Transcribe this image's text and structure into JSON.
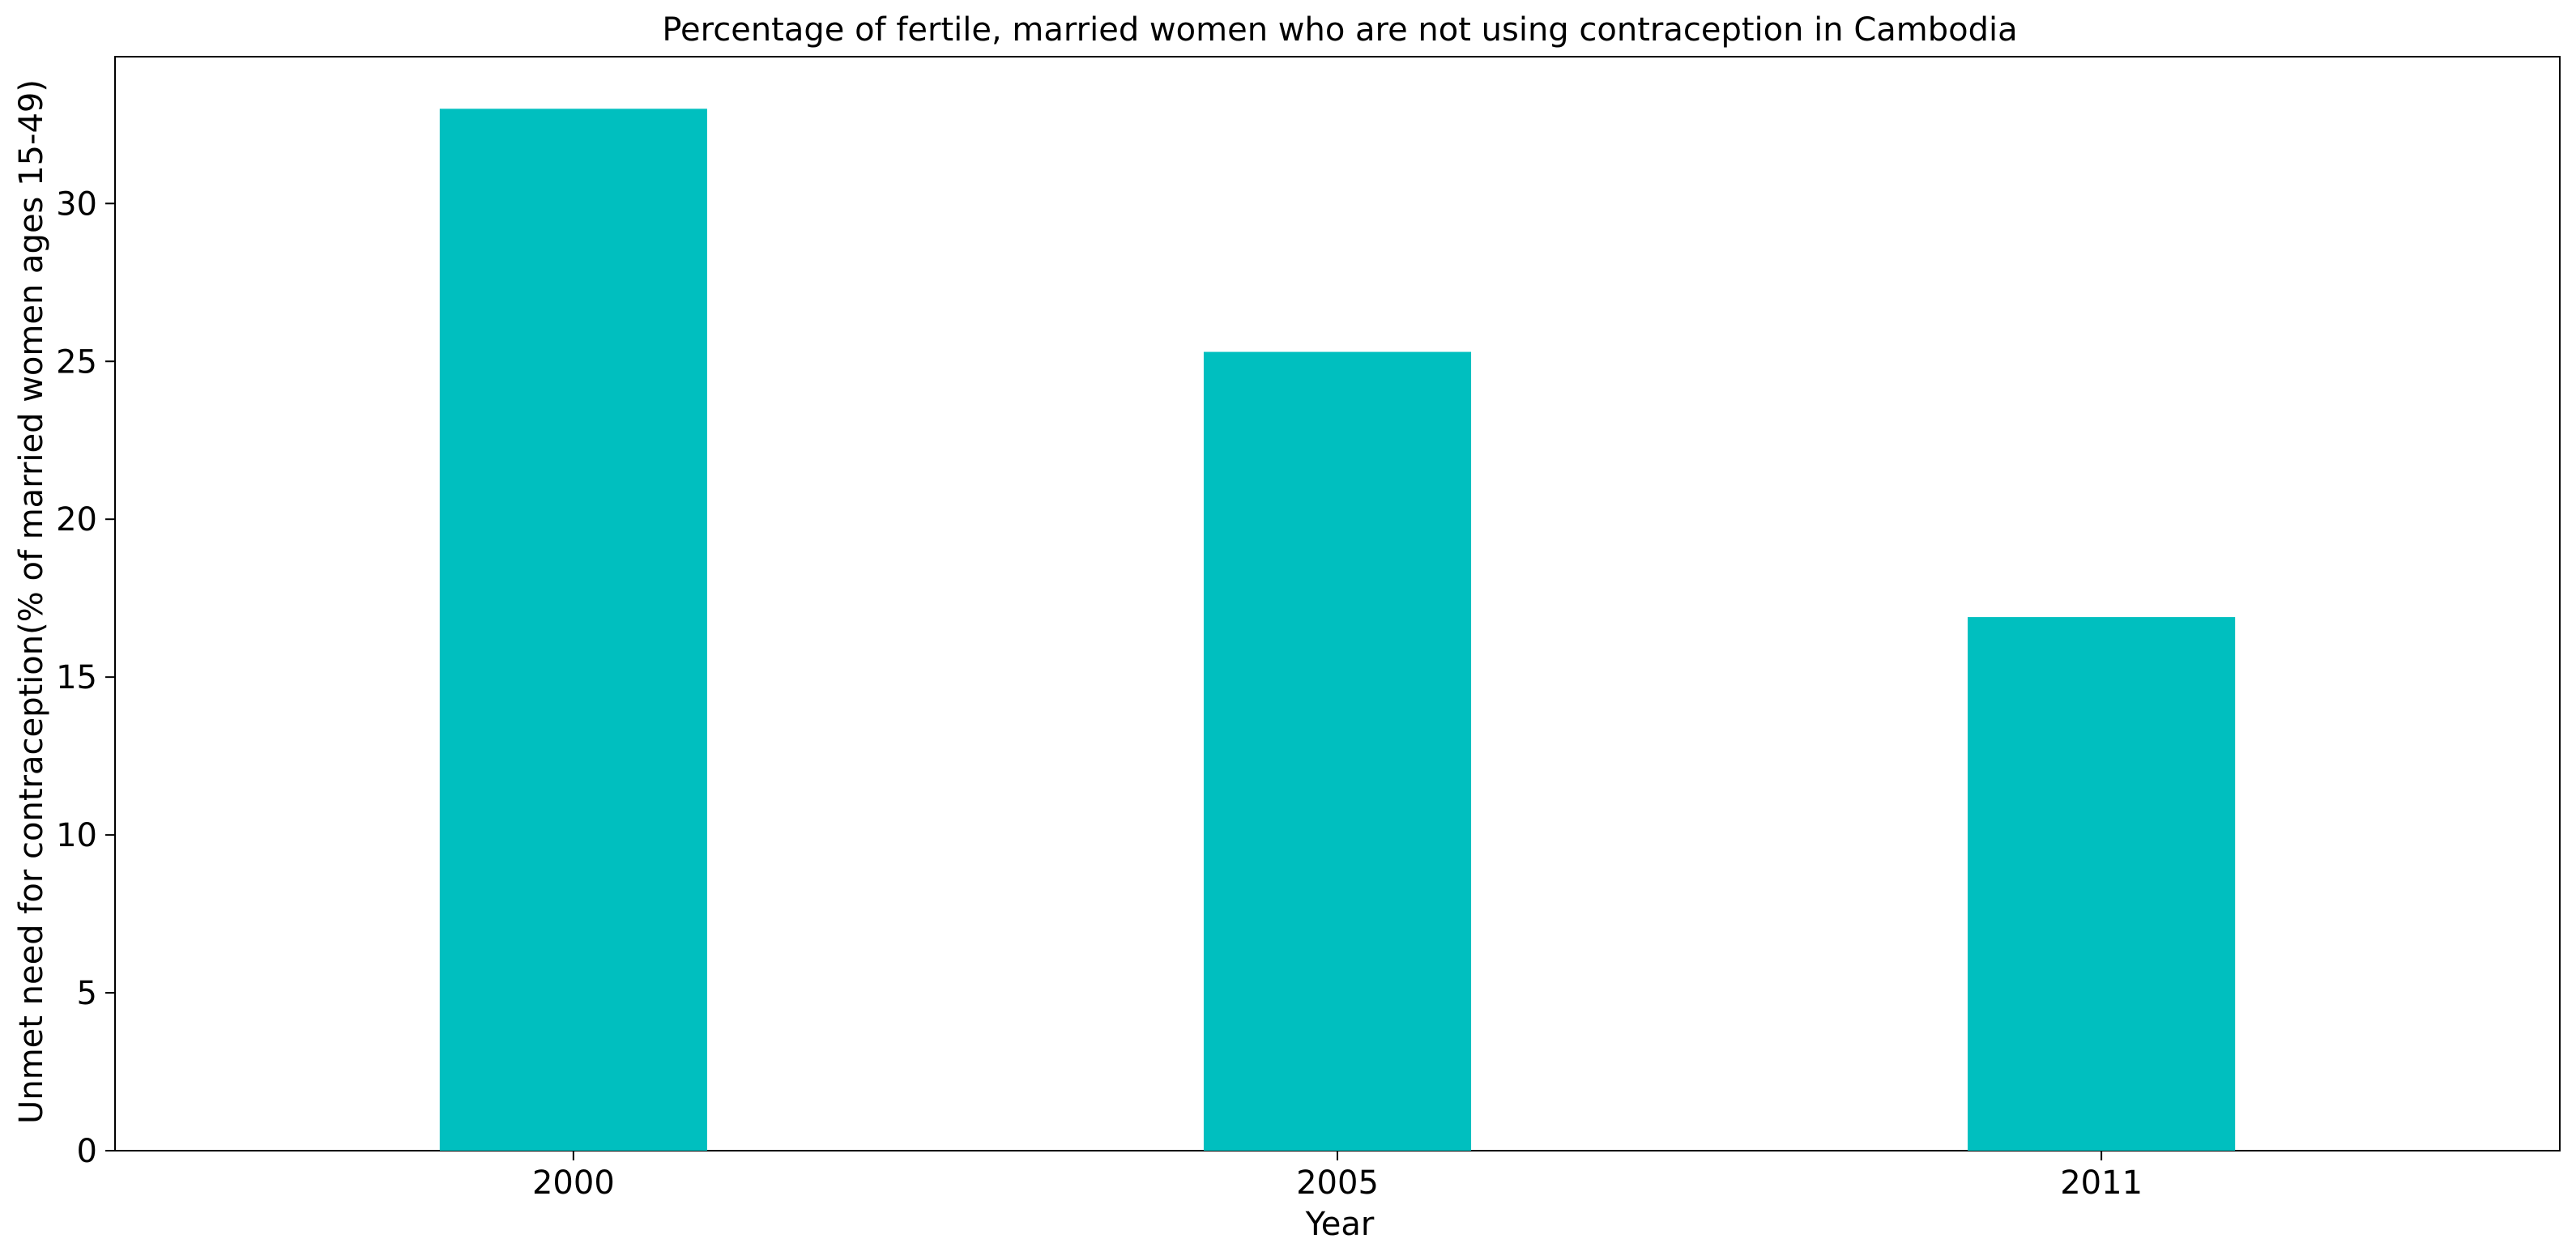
{
  "colors": {
    "bar": "#00bfbf",
    "axis": "#000000",
    "background": "#ffffff"
  },
  "chart_data": {
    "type": "bar",
    "title": "Percentage of fertile, married women who are not using contraception in Cambodia",
    "xlabel": "Year",
    "ylabel": "Unmet need for contraception(% of married women ages 15-49)",
    "categories": [
      "2000",
      "2005",
      "2011"
    ],
    "values": [
      33.0,
      25.3,
      16.9
    ],
    "ylim": [
      0,
      34.65
    ],
    "yticks": [
      0,
      5,
      10,
      15,
      20,
      25,
      30
    ],
    "grid": false,
    "legend": "none"
  }
}
